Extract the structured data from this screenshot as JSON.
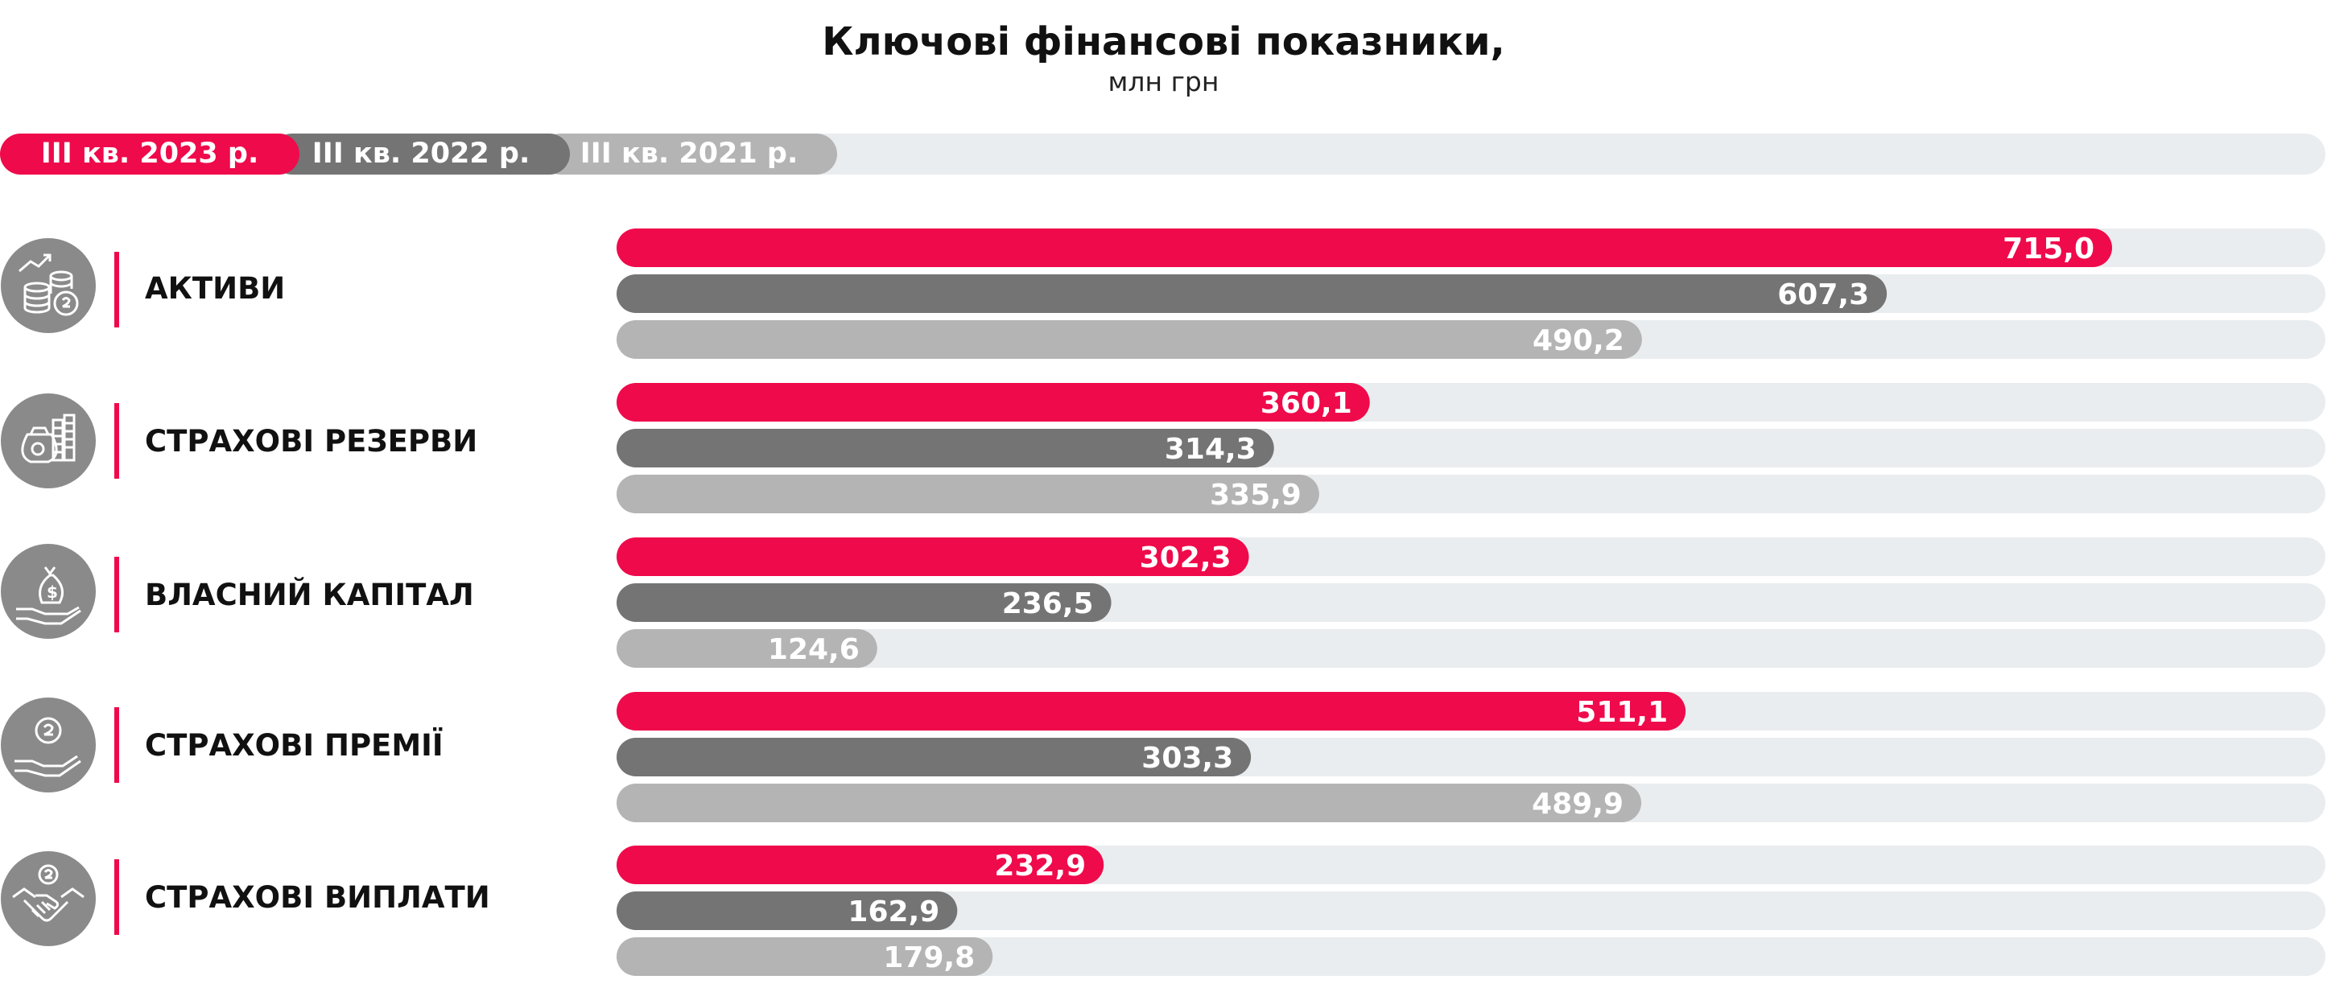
{
  "header": {
    "title": "Ключові фінансові показники,",
    "subtitle": "млн грн"
  },
  "legend": [
    {
      "label": "III кв. 2023 р.",
      "color": "#ef0a4b"
    },
    {
      "label": "III кв. 2022 р.",
      "color": "#747474"
    },
    {
      "label": "III кв. 2021 р.",
      "color": "#b4b4b4"
    }
  ],
  "colors": {
    "track": "#e9edef",
    "accent": "#ef0a4b",
    "icon": "#8a8a8a"
  },
  "rows": [
    {
      "label": "АКТИВИ",
      "icon": "coins-growth-icon"
    },
    {
      "label": "СТРАХОВІ РЕЗЕРВИ",
      "icon": "money-bag-cash-icon"
    },
    {
      "label": "ВЛАСНИЙ КАПІТАЛ",
      "icon": "hand-money-bag-icon"
    },
    {
      "label": "СТРАХОВІ ПРЕМІЇ",
      "icon": "hand-coin-icon"
    },
    {
      "label": "СТРАХОВІ ВИПЛАТИ",
      "icon": "handshake-coin-icon"
    }
  ],
  "chart_data": {
    "type": "bar",
    "orientation": "horizontal",
    "categories": [
      "АКТИВИ",
      "СТРАХОВІ РЕЗЕРВИ",
      "ВЛАСНИЙ КАПІТАЛ",
      "СТРАХОВІ ПРЕМІЇ",
      "СТРАХОВІ ВИПЛАТИ"
    ],
    "series": [
      {
        "name": "III кв. 2023 р.",
        "values": [
          715.0,
          360.1,
          302.3,
          511.1,
          232.9
        ],
        "labels": [
          "715,0",
          "360,1",
          "302,3",
          "511,1",
          "232,9"
        ]
      },
      {
        "name": "III кв. 2022 р.",
        "values": [
          607.3,
          314.3,
          236.5,
          303.3,
          162.9
        ],
        "labels": [
          "607,3",
          "314,3",
          "236,5",
          "303,3",
          "162,9"
        ]
      },
      {
        "name": "III кв. 2021 р.",
        "values": [
          490.2,
          335.9,
          124.6,
          489.9,
          179.8
        ],
        "labels": [
          "490,2",
          "335,9",
          "124,6",
          "489,9",
          "179,8"
        ]
      }
    ],
    "title": "Ключові фінансові показники,",
    "subtitle": "млн грн",
    "xlim": [
      0,
      1000
    ],
    "grid": false,
    "legend_position": "top-left"
  }
}
